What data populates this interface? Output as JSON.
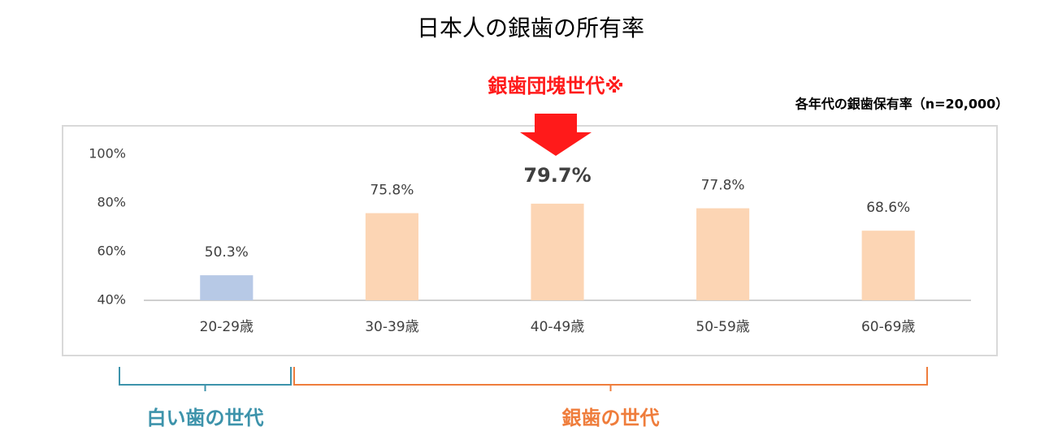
{
  "chart_data": {
    "type": "bar",
    "title": "日本人の銀歯の所有率",
    "subtitle": "各年代の銀歯保有率（n=20,000）",
    "annotation": "銀歯団塊世代※",
    "categories": [
      "20-29歳",
      "30-39歳",
      "40-49歳",
      "50-59歳",
      "60-69歳"
    ],
    "values": [
      50.3,
      75.8,
      79.7,
      77.8,
      68.6
    ],
    "value_labels": [
      "50.3%",
      "75.8%",
      "79.7%",
      "77.8%",
      "68.6%"
    ],
    "colors": [
      "#b7c9e6",
      "#fcd5b4",
      "#fcd5b4",
      "#fcd5b4",
      "#fcd5b4"
    ],
    "ylim": [
      40,
      100
    ],
    "yticks": [
      {
        "value": 40,
        "label": "40%"
      },
      {
        "value": 60,
        "label": "60%"
      },
      {
        "value": 80,
        "label": "80%"
      },
      {
        "value": 100,
        "label": "100%"
      }
    ],
    "groups": [
      {
        "label": "白い歯の世代",
        "color": "#3d93ab"
      },
      {
        "label": "銀歯の世代",
        "color": "#ef7d3c"
      }
    ]
  }
}
